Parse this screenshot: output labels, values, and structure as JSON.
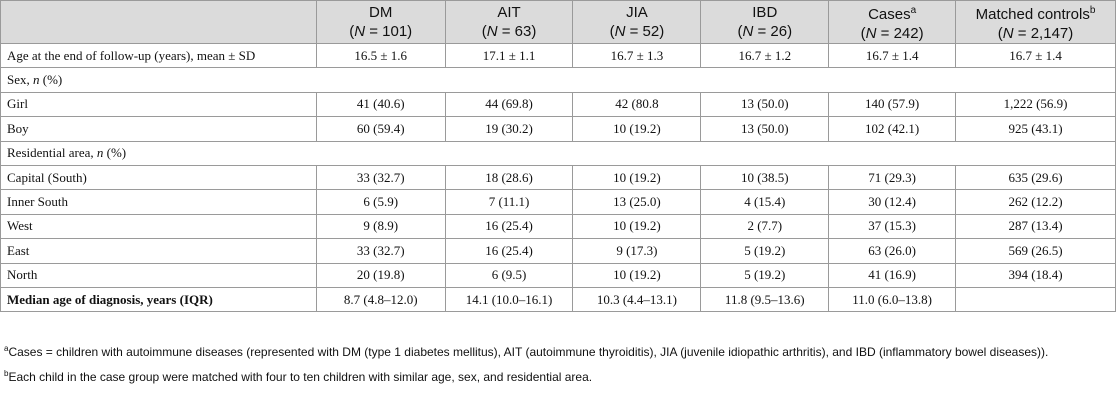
{
  "table": {
    "columns": [
      {
        "name": "DM",
        "n_prefix": "(",
        "n_var": "N",
        "n_value": " = 101)",
        "sup": ""
      },
      {
        "name": "AIT",
        "n_prefix": "(",
        "n_var": "N",
        "n_value": " = 63)",
        "sup": ""
      },
      {
        "name": "JIA",
        "n_prefix": "(",
        "n_var": "N",
        "n_value": " = 52)",
        "sup": ""
      },
      {
        "name": "IBD",
        "n_prefix": "(",
        "n_var": "N",
        "n_value": " = 26)",
        "sup": ""
      },
      {
        "name": "Cases",
        "n_prefix": "(",
        "n_var": "N",
        "n_value": " = 242)",
        "sup": "a"
      },
      {
        "name": "Matched controls",
        "n_prefix": "(",
        "n_var": "N",
        "n_value": " = 2,147)",
        "sup": "b"
      }
    ],
    "rows": {
      "age_end": {
        "label": "Age at the end of follow-up (years), mean ± SD",
        "values": [
          "16.5 ± 1.6",
          "17.1 ± 1.1",
          "16.7 ± 1.3",
          "16.7 ± 1.2",
          "16.7 ± 1.4",
          "16.7 ± 1.4"
        ]
      },
      "sex_header": {
        "label_pre": "Sex, ",
        "label_var": "n",
        "label_post": " (%)"
      },
      "girl": {
        "label": "Girl",
        "values": [
          "41 (40.6)",
          "44 (69.8)",
          "42 (80.8",
          "13 (50.0)",
          "140 (57.9)",
          "1,222 (56.9)"
        ]
      },
      "boy": {
        "label": "Boy",
        "values": [
          "60 (59.4)",
          "19 (30.2)",
          "10 (19.2)",
          "13 (50.0)",
          "102 (42.1)",
          "925 (43.1)"
        ]
      },
      "res_header": {
        "label_pre": "Residential area, ",
        "label_var": "n",
        "label_post": " (%)"
      },
      "capital": {
        "label": "Capital (South)",
        "values": [
          "33 (32.7)",
          "18 (28.6)",
          "10 (19.2)",
          "10 (38.5)",
          "71 (29.3)",
          "635 (29.6)"
        ]
      },
      "inner_south": {
        "label": "Inner South",
        "values": [
          "6 (5.9)",
          "7 (11.1)",
          "13 (25.0)",
          "4 (15.4)",
          "30 (12.4)",
          "262 (12.2)"
        ]
      },
      "west": {
        "label": "West",
        "values": [
          "9 (8.9)",
          "16 (25.4)",
          "10 (19.2)",
          "2 (7.7)",
          "37 (15.3)",
          "287 (13.4)"
        ]
      },
      "east": {
        "label": "East",
        "values": [
          "33 (32.7)",
          "16 (25.4)",
          "9 (17.3)",
          "5 (19.2)",
          "63 (26.0)",
          "569 (26.5)"
        ]
      },
      "north": {
        "label": "North",
        "values": [
          "20 (19.8)",
          "6 (9.5)",
          "10 (19.2)",
          "5 (19.2)",
          "41 (16.9)",
          "394 (18.4)"
        ]
      },
      "median_age": {
        "label": "Median age of diagnosis, years (IQR)",
        "values": [
          "8.7 (4.8–12.0)",
          "14.1 (10.0–16.1)",
          "10.3 (4.4–13.1)",
          "11.8 (9.5–13.6)",
          "11.0 (6.0–13.8)",
          ""
        ]
      }
    }
  },
  "footnotes": {
    "a": {
      "mark": "a",
      "text": "Cases = children with autoimmune diseases (represented with DM (type 1 diabetes mellitus), AIT (autoimmune thyroiditis), JIA (juvenile idiopathic arthritis), and IBD (inflammatory bowel diseases))."
    },
    "b": {
      "mark": "b",
      "text": "Each child in the case group were matched with four to ten children with similar age, sex, and residential area."
    }
  }
}
